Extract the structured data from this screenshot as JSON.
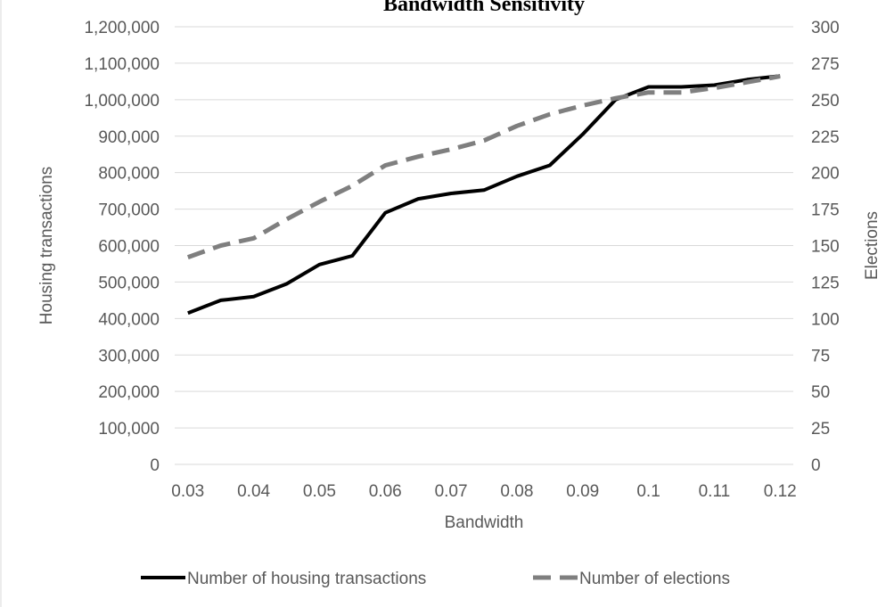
{
  "chart_data": {
    "type": "line",
    "title": "Bandwidth Sensitivity",
    "xlabel": "Bandwidth",
    "ylabel_left": "Housing transactions",
    "ylabel_right": "Elections",
    "x": [
      0.03,
      0.035,
      0.04,
      0.045,
      0.05,
      0.055,
      0.06,
      0.065,
      0.07,
      0.075,
      0.08,
      0.085,
      0.09,
      0.095,
      0.1,
      0.105,
      0.11,
      0.115,
      0.12
    ],
    "x_ticks": [
      "0.03",
      "0.04",
      "0.05",
      "0.06",
      "0.07",
      "0.08",
      "0.09",
      "0.1",
      "0.11",
      "0.12"
    ],
    "y_left_ticks": [
      "0",
      "100,000",
      "200,000",
      "300,000",
      "400,000",
      "500,000",
      "600,000",
      "700,000",
      "800,000",
      "900,000",
      "1,000,000",
      "1,100,000",
      "1,200,000"
    ],
    "y_right_ticks": [
      "0",
      "25",
      "50",
      "75",
      "100",
      "125",
      "150",
      "175",
      "200",
      "225",
      "250",
      "275",
      "300"
    ],
    "ylim_left": [
      0,
      1200000
    ],
    "ylim_right": [
      0,
      300
    ],
    "grid": true,
    "legend_position": "bottom",
    "series": [
      {
        "name": "Number of housing transactions",
        "axis": "left",
        "style": "solid",
        "color": "#000000",
        "values": [
          415000,
          450000,
          460000,
          495000,
          548000,
          572000,
          690000,
          728000,
          743000,
          752000,
          790000,
          820000,
          905000,
          1000000,
          1035000,
          1035000,
          1040000,
          1055000,
          1065000
        ]
      },
      {
        "name": "Number of elections",
        "axis": "right",
        "style": "dashed",
        "color": "#7f7f7f",
        "values": [
          142,
          150,
          155,
          168,
          180,
          191,
          205,
          211,
          216,
          222,
          232,
          240,
          246,
          251,
          255,
          255,
          258,
          262,
          266
        ]
      }
    ]
  }
}
